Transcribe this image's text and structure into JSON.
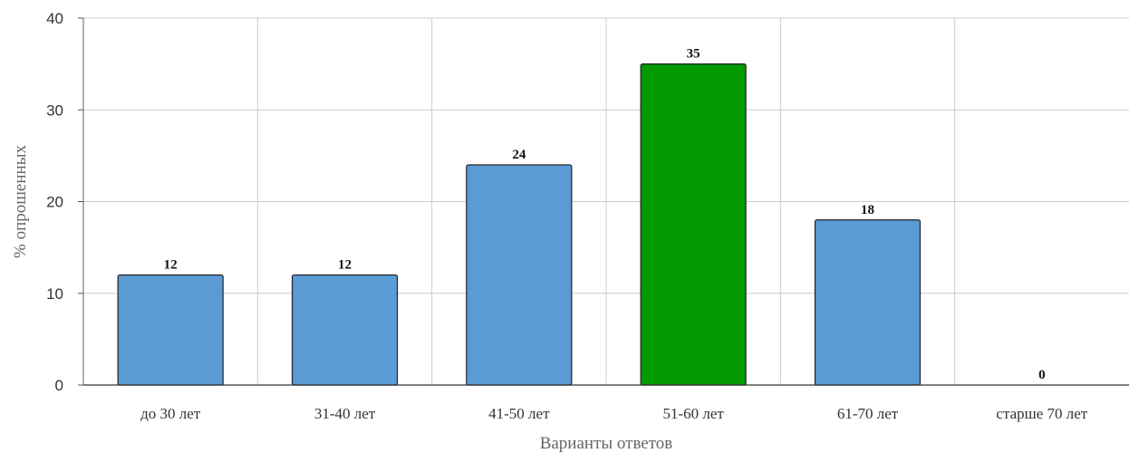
{
  "chart_data": {
    "type": "bar",
    "title": "",
    "xlabel": "Варианты ответов",
    "ylabel": "% опрошенных",
    "categories": [
      "до 30 лет",
      "31-40 лет",
      "41-50 лет",
      "51-60 лет",
      "61-70 лет",
      "старше 70 лет"
    ],
    "values": [
      12,
      12,
      24,
      35,
      18,
      0
    ],
    "data_labels": [
      "12",
      "12",
      "24",
      "35",
      "18",
      "0"
    ],
    "ylim": [
      0,
      40
    ],
    "yticks": [
      0,
      10,
      20,
      30,
      40
    ],
    "ytick_labels": [
      "0",
      "10",
      "20",
      "30",
      "40"
    ],
    "grid": true,
    "legend": "none",
    "colors": {
      "default_bar": "#5b9bd5",
      "highlight_bar": "#009900",
      "bar_stroke": "#222222",
      "grid": "#cccccc"
    },
    "highlight_index": 3
  }
}
